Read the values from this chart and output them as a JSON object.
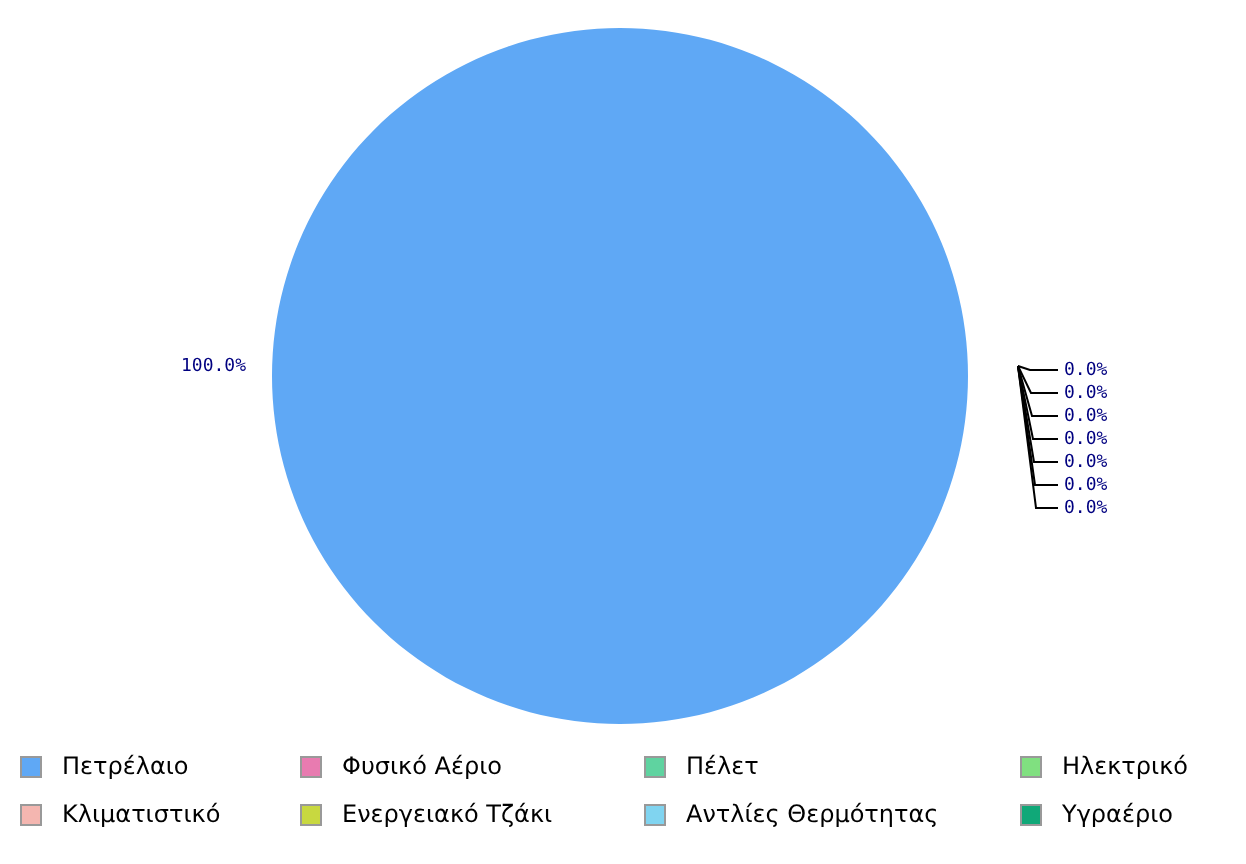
{
  "chart_data": {
    "type": "pie",
    "categories": [
      "Πετρέλαιο",
      "Φυσικό Αέριο",
      "Πέλετ",
      "Ηλεκτρικό",
      "Κλιματιστικό",
      "Ενεργειακό Τζάκι",
      "Αντλίες Θερμότητας",
      "Υγραέριο"
    ],
    "values": [
      100,
      0,
      0,
      0,
      0,
      0,
      0,
      0
    ],
    "colors": [
      "#5fa8f5",
      "#e87bb0",
      "#5fd3a0",
      "#80e080",
      "#f4b6b0",
      "#c8d840",
      "#80d4f0",
      "#10a878"
    ],
    "value_labels": [
      "100.0%",
      "0.0%",
      "0.0%",
      "0.0%",
      "0.0%",
      "0.0%",
      "0.0%",
      "0.0%"
    ],
    "legend": "bottom"
  }
}
